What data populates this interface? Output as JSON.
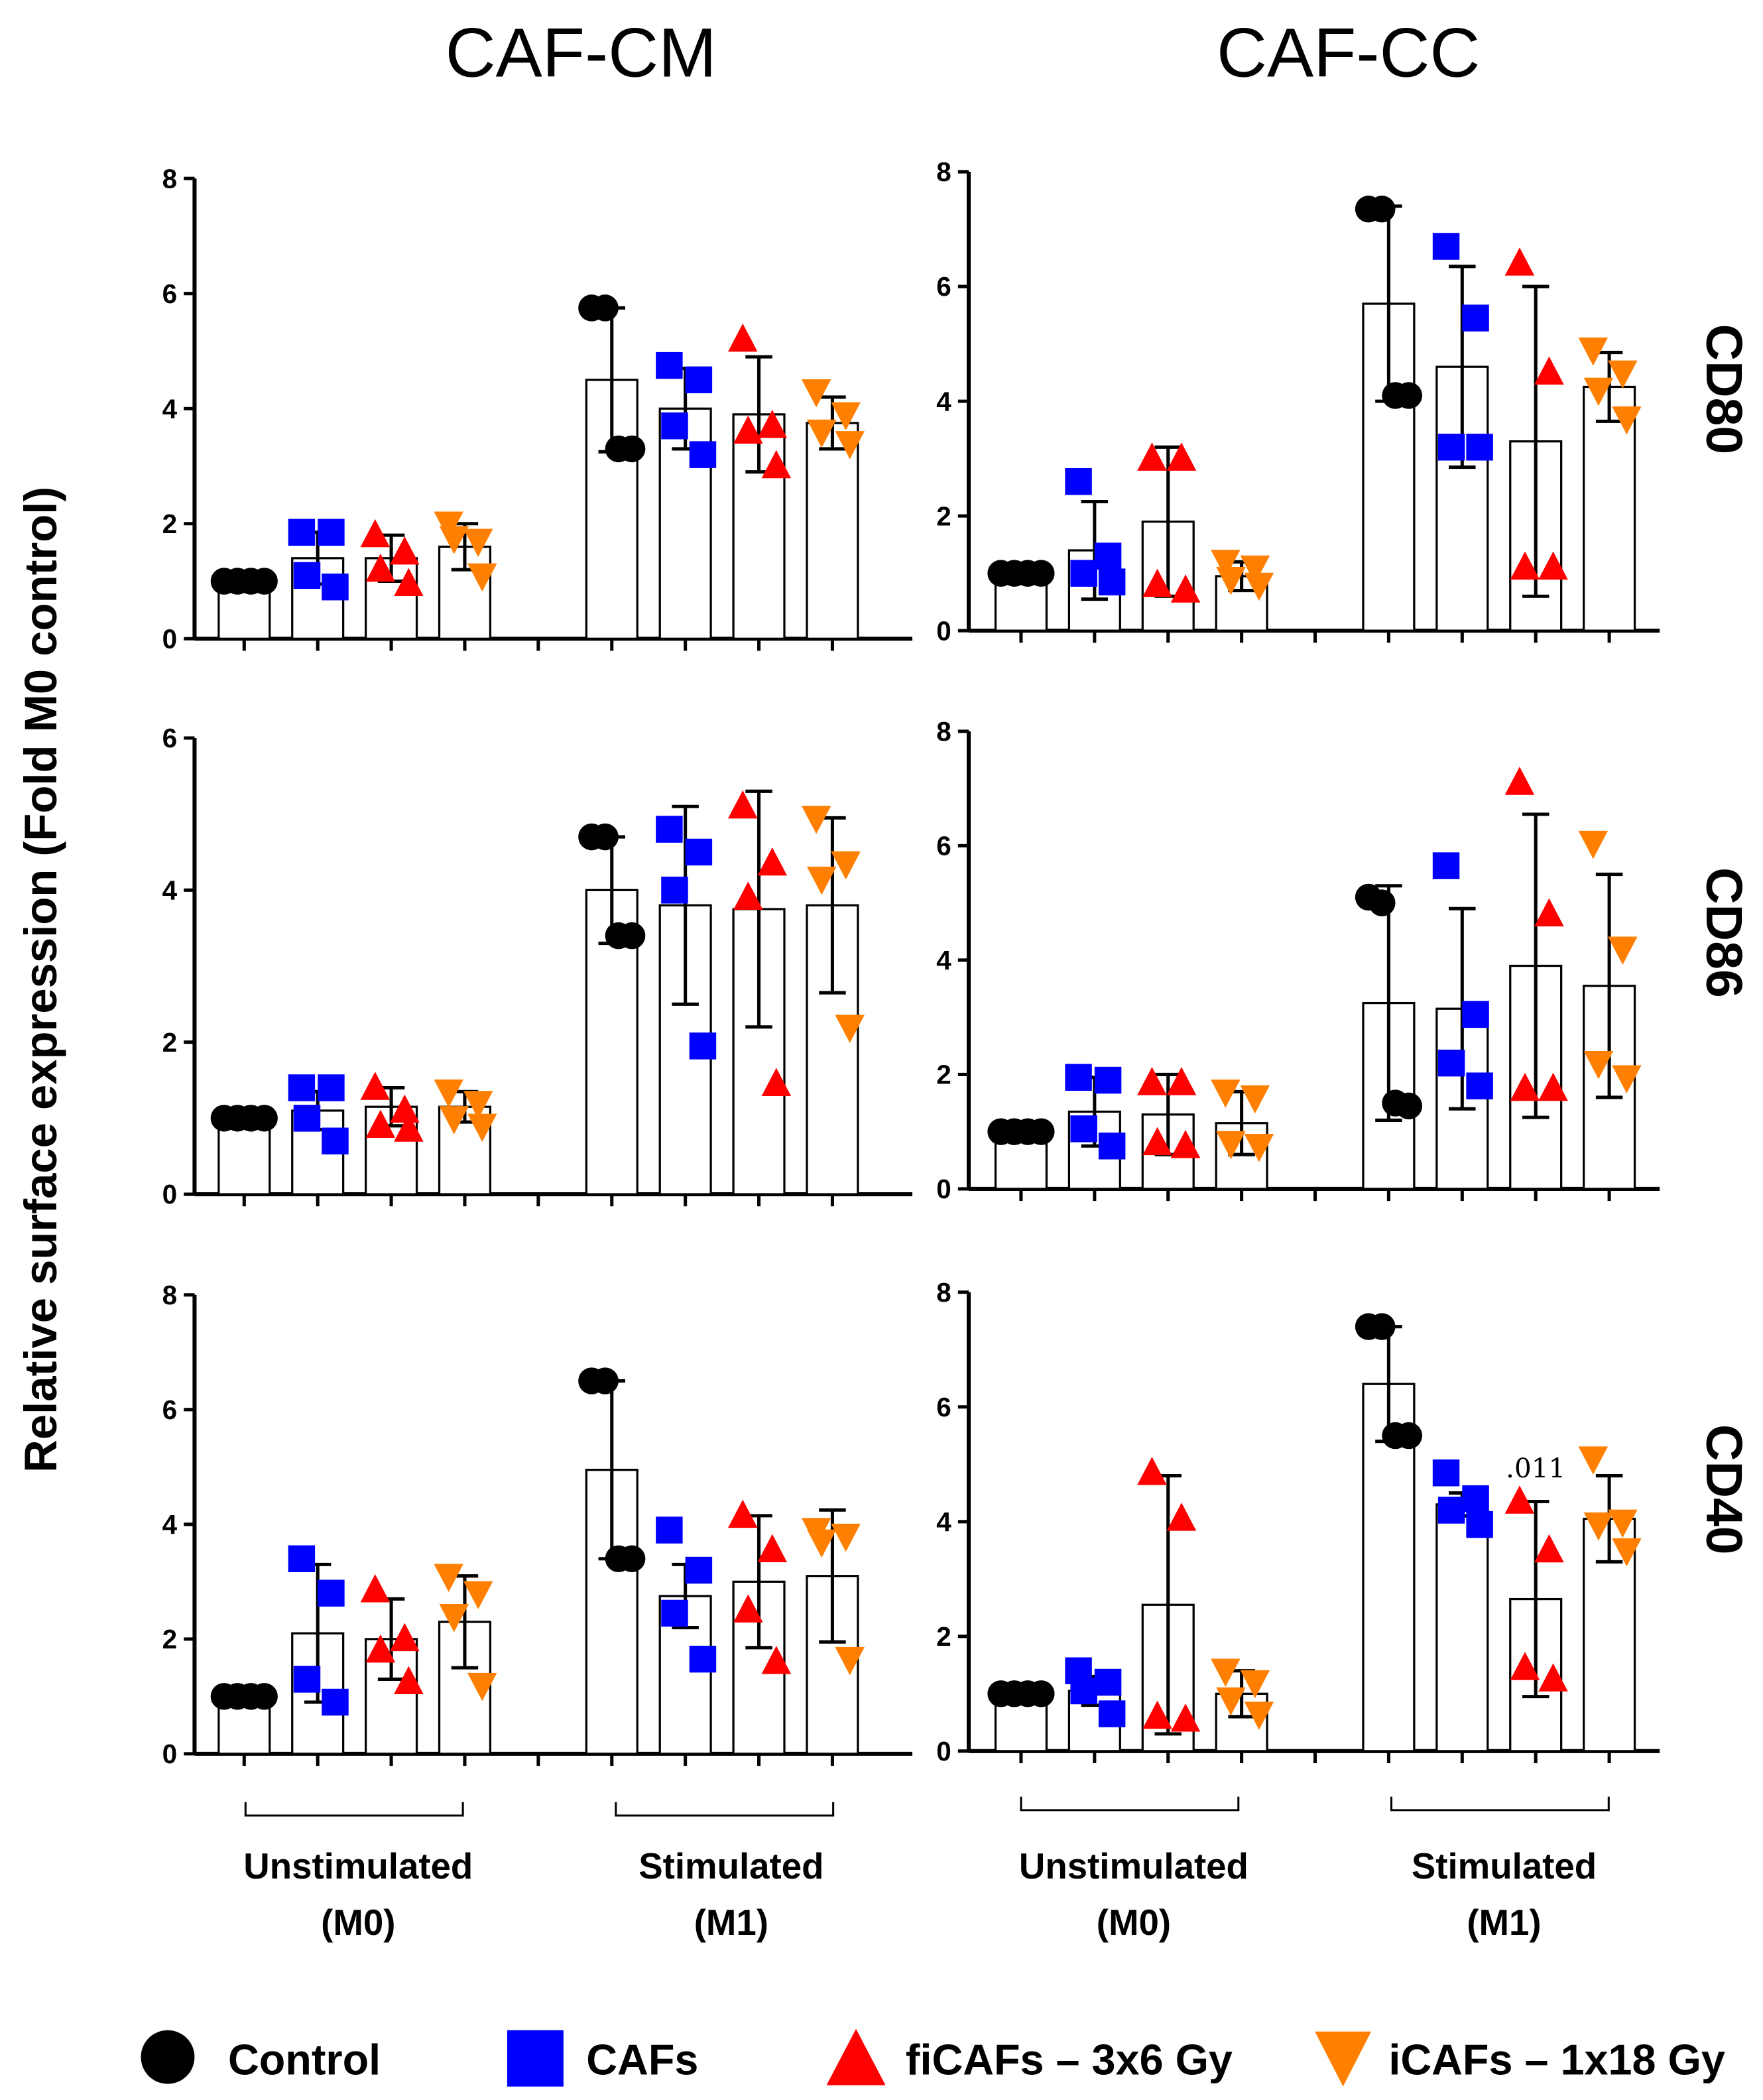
{
  "chart_data": {
    "type": "bar",
    "column_titles": [
      "CAF-CM",
      "CAF-CC"
    ],
    "row_labels": [
      "CD80",
      "CD86",
      "CD40"
    ],
    "ylabel": "Relative surface expression (Fold M0 control)",
    "groups": [
      {
        "line1": "Unstimulated",
        "line2": "(M0)"
      },
      {
        "line1": "Stimulated",
        "line2": "(M1)"
      }
    ],
    "series": [
      {
        "name": "Control",
        "marker": "circle",
        "color": "#000000"
      },
      {
        "name": "CAFs",
        "marker": "square",
        "color": "#0000ff"
      },
      {
        "name": "fiCAFs – 3x6 Gy",
        "marker": "triangle-up",
        "color": "#ff0000"
      },
      {
        "name": "iCAFs – 1x18 Gy",
        "marker": "triangle-down",
        "color": "#ff8000"
      }
    ],
    "legend_position": "bottom",
    "panels": [
      {
        "column": 0,
        "row": 0,
        "ylim": [
          0,
          8
        ],
        "yticks": [
          0,
          2,
          4,
          6,
          8
        ],
        "M0": {
          "mean": [
            1.0,
            1.4,
            1.4,
            1.6
          ],
          "upper": [
            1.0,
            1.85,
            1.8,
            2.0
          ],
          "points": [
            [
              1,
              1,
              1,
              1
            ],
            [
              1.85,
              1.85,
              1.1,
              0.9
            ],
            [
              1.8,
              1.5,
              1.2,
              0.95
            ],
            [
              2.0,
              1.7,
              1.75,
              1.1
            ]
          ]
        },
        "M1": {
          "mean": [
            4.5,
            4.0,
            3.9,
            3.75
          ],
          "upper": [
            5.75,
            4.7,
            4.9,
            4.2
          ],
          "points": [
            [
              5.75,
              5.75,
              3.3,
              3.3
            ],
            [
              4.75,
              4.5,
              3.7,
              3.2
            ],
            [
              5.2,
              3.7,
              3.6,
              3.0
            ],
            [
              4.3,
              3.9,
              3.6,
              3.4
            ]
          ]
        }
      },
      {
        "column": 1,
        "row": 0,
        "ylim": [
          0,
          8
        ],
        "yticks": [
          0,
          2,
          4,
          6,
          8
        ],
        "M0": {
          "mean": [
            1.0,
            1.4,
            1.9,
            0.95
          ],
          "upper": [
            1.0,
            2.25,
            3.2,
            1.2
          ],
          "points": [
            [
              1,
              1,
              1,
              1
            ],
            [
              2.6,
              1.3,
              1.0,
              0.85
            ],
            [
              3.0,
              3.0,
              0.8,
              0.7
            ],
            [
              1.2,
              1.1,
              0.9,
              0.8
            ]
          ]
        },
        "M1": {
          "mean": [
            5.7,
            4.6,
            3.3,
            4.25
          ],
          "upper": [
            7.4,
            6.35,
            6.0,
            4.85
          ],
          "points": [
            [
              7.35,
              7.35,
              4.1,
              4.1
            ],
            [
              6.7,
              5.45,
              3.2,
              3.2
            ],
            [
              6.4,
              4.5,
              1.1,
              1.1
            ],
            [
              4.9,
              4.5,
              4.2,
              3.7
            ]
          ]
        }
      },
      {
        "column": 0,
        "row": 1,
        "ylim": [
          0,
          6
        ],
        "yticks": [
          0,
          2,
          4,
          6
        ],
        "M0": {
          "mean": [
            1.0,
            1.1,
            1.15,
            1.15
          ],
          "upper": [
            1.0,
            1.35,
            1.4,
            1.35
          ],
          "points": [
            [
              1,
              1,
              1,
              1
            ],
            [
              1.4,
              1.4,
              1.0,
              0.7
            ],
            [
              1.4,
              1.1,
              0.9,
              0.85
            ],
            [
              1.35,
              1.2,
              1.0,
              0.9
            ]
          ]
        },
        "M1": {
          "mean": [
            4.0,
            3.8,
            3.75,
            3.8
          ],
          "upper": [
            4.7,
            5.1,
            5.3,
            4.95
          ],
          "points": [
            [
              4.7,
              4.7,
              3.4,
              3.4
            ],
            [
              4.8,
              4.5,
              4.0,
              1.95
            ],
            [
              5.1,
              4.35,
              3.9,
              1.45
            ],
            [
              4.95,
              4.35,
              4.15,
              2.2
            ]
          ]
        }
      },
      {
        "column": 1,
        "row": 1,
        "ylim": [
          0,
          8
        ],
        "yticks": [
          0,
          2,
          4,
          6,
          8
        ],
        "M0": {
          "mean": [
            1.0,
            1.35,
            1.3,
            1.15
          ],
          "upper": [
            1.0,
            1.95,
            2.0,
            1.7
          ],
          "points": [
            [
              1,
              1,
              1,
              1
            ],
            [
              1.95,
              1.9,
              1.05,
              0.75
            ],
            [
              1.85,
              1.85,
              0.8,
              0.75
            ],
            [
              1.7,
              1.6,
              0.8,
              0.75
            ]
          ]
        },
        "M1": {
          "mean": [
            3.25,
            3.15,
            3.9,
            3.55
          ],
          "upper": [
            5.3,
            4.9,
            6.55,
            5.5
          ],
          "points": [
            [
              5.1,
              5.0,
              1.5,
              1.45
            ],
            [
              5.65,
              3.05,
              2.2,
              1.8
            ],
            [
              7.1,
              4.8,
              1.75,
              1.75
            ],
            [
              6.05,
              4.2,
              2.2,
              1.95
            ]
          ]
        }
      },
      {
        "column": 0,
        "row": 2,
        "ylim": [
          0,
          8
        ],
        "yticks": [
          0,
          2,
          4,
          6,
          8
        ],
        "M0": {
          "mean": [
            1.0,
            2.1,
            2.0,
            2.3
          ],
          "upper": [
            1.0,
            3.3,
            2.7,
            3.1
          ],
          "points": [
            [
              1,
              1,
              1,
              1
            ],
            [
              3.4,
              2.8,
              1.3,
              0.9
            ],
            [
              2.85,
              2.0,
              1.8,
              1.25
            ],
            [
              3.1,
              2.8,
              2.4,
              1.2
            ]
          ]
        },
        "M1": {
          "mean": [
            4.95,
            2.75,
            3.0,
            3.1
          ],
          "upper": [
            6.5,
            3.3,
            4.15,
            4.25
          ],
          "points": [
            [
              6.5,
              6.5,
              3.4,
              3.4
            ],
            [
              3.9,
              3.2,
              2.45,
              1.65
            ],
            [
              4.15,
              3.55,
              2.5,
              1.6
            ],
            [
              3.9,
              3.8,
              3.7,
              1.65
            ]
          ]
        }
      },
      {
        "column": 1,
        "row": 2,
        "ylim": [
          0,
          8
        ],
        "yticks": [
          0,
          2,
          4,
          6,
          8
        ],
        "M0": {
          "mean": [
            1.0,
            1.05,
            2.55,
            1.0
          ],
          "upper": [
            1.0,
            1.3,
            4.8,
            1.4
          ],
          "points": [
            [
              1,
              1,
              1,
              1
            ],
            [
              1.4,
              1.2,
              1.05,
              0.65
            ],
            [
              4.85,
              4.05,
              0.6,
              0.55
            ],
            [
              1.4,
              1.2,
              0.9,
              0.65
            ]
          ]
        },
        "M1": {
          "mean": [
            6.4,
            4.3,
            2.65,
            4.05
          ],
          "upper": [
            7.4,
            4.5,
            4.35,
            4.8
          ],
          "points": [
            [
              7.4,
              7.4,
              5.5,
              5.5
            ],
            [
              4.85,
              4.4,
              4.2,
              3.95
            ],
            [
              4.35,
              3.5,
              1.45,
              1.25
            ],
            [
              5.1,
              4.0,
              3.95,
              3.5
            ]
          ]
        },
        "annotation": {
          "group": "M1",
          "series": 2,
          "text": ".011"
        }
      }
    ]
  }
}
